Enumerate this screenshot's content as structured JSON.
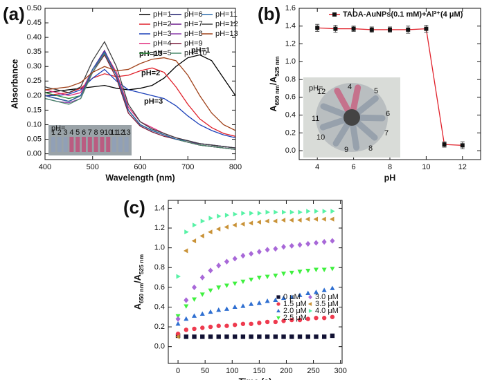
{
  "chart_data": [
    {
      "type": "line",
      "title": "(a)",
      "x_label": "Wavelength (nm)",
      "y_label": "Absorbance",
      "x": [
        400,
        425,
        450,
        475,
        500,
        525,
        550,
        575,
        600,
        625,
        650,
        675,
        700,
        725,
        750,
        775,
        800
      ],
      "xlim": [
        400,
        800
      ],
      "xticks": [
        400,
        500,
        600,
        700,
        800
      ],
      "ylim": [
        -0.02,
        0.5
      ],
      "yticks": [
        {
          "value": 0,
          "label": "0.00"
        },
        0.05,
        {
          "value": 0.1,
          "label": "0.10"
        },
        0.15,
        {
          "value": 0.2,
          "label": "0.20"
        },
        0.25,
        {
          "value": 0.3,
          "label": "0.30"
        },
        0.35,
        {
          "value": 0.4,
          "label": "0.40"
        },
        0.45,
        {
          "value": 0.5,
          "label": "0.50"
        }
      ],
      "legend_loc": "upper right",
      "legend_columns": 3,
      "annotations": [
        "pH=13",
        "pH=1",
        "pH=2",
        "pH=3"
      ],
      "inset_labels": [
        "pH=",
        "1",
        "2",
        "3",
        "4",
        "5",
        "6",
        "7",
        "8",
        "9",
        "10",
        "11",
        "12",
        "13"
      ],
      "series": [
        {
          "name": "pH=1",
          "color": "#000000",
          "values": [
            0.21,
            0.215,
            0.22,
            0.225,
            0.23,
            0.235,
            0.225,
            0.22,
            0.225,
            0.235,
            0.26,
            0.3,
            0.33,
            0.34,
            0.32,
            0.26,
            0.2
          ]
        },
        {
          "name": "pH=2",
          "color": "#e0202a",
          "values": [
            0.2,
            0.205,
            0.21,
            0.225,
            0.26,
            0.275,
            0.265,
            0.27,
            0.285,
            0.295,
            0.28,
            0.23,
            0.17,
            0.12,
            0.09,
            0.07,
            0.06
          ]
        },
        {
          "name": "pH=3",
          "color": "#1a3fb8",
          "values": [
            0.2,
            0.2,
            0.205,
            0.22,
            0.26,
            0.29,
            0.25,
            0.22,
            0.21,
            0.2,
            0.19,
            0.165,
            0.13,
            0.1,
            0.08,
            0.065,
            0.055
          ]
        },
        {
          "name": "pH=4",
          "color": "#e0287a",
          "values": [
            0.22,
            0.21,
            0.2,
            0.21,
            0.29,
            0.35,
            0.28,
            0.16,
            0.11,
            0.09,
            0.07,
            0.055,
            0.045,
            0.035,
            0.03,
            0.025,
            0.02
          ]
        },
        {
          "name": "pH=5",
          "color": "#2a8a3a",
          "values": [
            0.21,
            0.2,
            0.19,
            0.2,
            0.29,
            0.35,
            0.27,
            0.15,
            0.1,
            0.08,
            0.065,
            0.05,
            0.04,
            0.03,
            0.025,
            0.02,
            0.015
          ]
        },
        {
          "name": "pH=6",
          "color": "#1a1a6a",
          "values": [
            0.2,
            0.19,
            0.18,
            0.2,
            0.29,
            0.345,
            0.27,
            0.15,
            0.1,
            0.08,
            0.065,
            0.05,
            0.04,
            0.03,
            0.025,
            0.02,
            0.015
          ]
        },
        {
          "name": "pH=7",
          "color": "#6a1a8a",
          "values": [
            0.2,
            0.19,
            0.18,
            0.2,
            0.29,
            0.355,
            0.27,
            0.15,
            0.1,
            0.08,
            0.065,
            0.05,
            0.04,
            0.035,
            0.03,
            0.025,
            0.02
          ]
        },
        {
          "name": "pH=8",
          "color": "#8a3aaa",
          "values": [
            0.19,
            0.18,
            0.175,
            0.19,
            0.28,
            0.35,
            0.27,
            0.15,
            0.1,
            0.08,
            0.065,
            0.05,
            0.04,
            0.03,
            0.025,
            0.02,
            0.015
          ]
        },
        {
          "name": "pH=9",
          "color": "#7a1a3a",
          "values": [
            0.2,
            0.19,
            0.18,
            0.2,
            0.28,
            0.34,
            0.26,
            0.14,
            0.095,
            0.075,
            0.06,
            0.05,
            0.04,
            0.03,
            0.025,
            0.02,
            0.015
          ]
        },
        {
          "name": "pH=10",
          "color": "#4a8a6a",
          "values": [
            0.19,
            0.18,
            0.17,
            0.19,
            0.28,
            0.345,
            0.27,
            0.15,
            0.1,
            0.08,
            0.065,
            0.05,
            0.04,
            0.03,
            0.025,
            0.02,
            0.015
          ]
        },
        {
          "name": "pH=11",
          "color": "#2a6aaa",
          "values": [
            0.2,
            0.19,
            0.18,
            0.2,
            0.29,
            0.35,
            0.27,
            0.15,
            0.1,
            0.08,
            0.065,
            0.05,
            0.045,
            0.035,
            0.03,
            0.025,
            0.02
          ]
        },
        {
          "name": "pH=12",
          "color": "#404040",
          "values": [
            0.23,
            0.22,
            0.21,
            0.23,
            0.32,
            0.385,
            0.3,
            0.17,
            0.11,
            0.085,
            0.07,
            0.055,
            0.045,
            0.035,
            0.03,
            0.025,
            0.02
          ]
        },
        {
          "name": "pH=13",
          "color": "#a0421a",
          "values": [
            0.22,
            0.225,
            0.23,
            0.245,
            0.28,
            0.3,
            0.285,
            0.29,
            0.31,
            0.325,
            0.33,
            0.32,
            0.27,
            0.2,
            0.14,
            0.1,
            0.08
          ]
        }
      ]
    },
    {
      "type": "line",
      "title": "(b)",
      "x_label": "pH",
      "y_label_parts": [
        "A",
        "650 nm",
        "/A",
        "525 nm"
      ],
      "x": [
        4,
        5,
        6,
        7,
        8,
        9,
        10,
        11,
        12
      ],
      "xlim": [
        3,
        13
      ],
      "xticks": [
        4,
        6,
        8,
        10,
        12
      ],
      "ylim": [
        -0.1,
        1.6
      ],
      "yticks": [
        {
          "value": 0,
          "label": "0.0"
        },
        0.2,
        0.4,
        0.6,
        0.8,
        {
          "value": 1,
          "label": "1.0"
        },
        1.2,
        1.4,
        1.6
      ],
      "legend_loc": "upper right",
      "legend_columns": 1,
      "inset_labels": [
        "pH=",
        "12",
        "4",
        "5",
        "6",
        "7",
        "8",
        "9",
        "10",
        "11"
      ],
      "series": [
        {
          "name": "TADA-AuNPs(0.1 mM)+Al³⁺(4 μM)",
          "color": "#e0202a",
          "marker": "square",
          "marker_color": "#111111",
          "values": [
            1.38,
            1.37,
            1.37,
            1.36,
            1.36,
            1.36,
            1.37,
            0.07,
            0.06
          ],
          "errors": [
            0.04,
            0.04,
            0.03,
            0.03,
            0.03,
            0.04,
            0.04,
            0.03,
            0.04
          ]
        }
      ]
    },
    {
      "type": "scatter",
      "title": "(c)",
      "x_label": "Time (s)",
      "y_label_parts": [
        "A",
        "650 nm",
        "/A",
        "525 nm"
      ],
      "x": [
        0,
        15,
        30,
        45,
        60,
        75,
        90,
        105,
        120,
        135,
        150,
        165,
        180,
        195,
        210,
        225,
        240,
        255,
        270,
        285
      ],
      "xlim": [
        -18,
        303
      ],
      "xticks": [
        0,
        50,
        100,
        150,
        200,
        250,
        300
      ],
      "ylim": [
        -0.17,
        1.48
      ],
      "yticks": [
        {
          "value": 0,
          "label": "0.0"
        },
        0.2,
        0.4,
        0.6,
        0.8,
        {
          "value": 1,
          "label": "1.0"
        },
        1.2,
        1.4
      ],
      "legend_loc": "lower right",
      "legend_columns": 2,
      "series": [
        {
          "name": "0 μM",
          "color": "#111133",
          "marker": "square",
          "values": [
            0.11,
            0.1,
            0.1,
            0.1,
            0.1,
            0.1,
            0.1,
            0.1,
            0.1,
            0.1,
            0.1,
            0.1,
            0.1,
            0.1,
            0.1,
            0.1,
            0.1,
            0.1,
            0.1,
            0.11
          ]
        },
        {
          "name": "1.5 μM",
          "color": "#ee3a4e",
          "marker": "circle",
          "values": [
            0.13,
            0.17,
            0.18,
            0.19,
            0.2,
            0.21,
            0.21,
            0.22,
            0.23,
            0.23,
            0.24,
            0.25,
            0.25,
            0.26,
            0.27,
            0.27,
            0.28,
            0.29,
            0.29,
            0.3
          ]
        },
        {
          "name": "2.0 μM",
          "color": "#2f6fd1",
          "marker": "triangle-up",
          "values": [
            0.23,
            0.28,
            0.31,
            0.33,
            0.35,
            0.37,
            0.38,
            0.4,
            0.41,
            0.43,
            0.44,
            0.46,
            0.47,
            0.49,
            0.5,
            0.52,
            0.54,
            0.55,
            0.57,
            0.59
          ]
        },
        {
          "name": "2.5 μM",
          "color": "#3ff03f",
          "marker": "triangle-down",
          "values": [
            0.31,
            0.41,
            0.48,
            0.53,
            0.57,
            0.6,
            0.62,
            0.64,
            0.66,
            0.68,
            0.7,
            0.71,
            0.72,
            0.74,
            0.75,
            0.76,
            0.77,
            0.78,
            0.78,
            0.79
          ]
        },
        {
          "name": "3.0 μM",
          "color": "#a868d8",
          "marker": "diamond",
          "values": [
            0.28,
            0.47,
            0.6,
            0.7,
            0.77,
            0.82,
            0.86,
            0.89,
            0.92,
            0.94,
            0.96,
            0.98,
            0.99,
            1.01,
            1.02,
            1.03,
            1.04,
            1.05,
            1.06,
            1.07
          ]
        },
        {
          "name": "3.5 μM",
          "color": "#c99237",
          "marker": "triangle-left",
          "values": [
            0.1,
            0.97,
            1.07,
            1.12,
            1.16,
            1.19,
            1.21,
            1.23,
            1.24,
            1.25,
            1.26,
            1.27,
            1.27,
            1.28,
            1.28,
            1.28,
            1.29,
            1.29,
            1.29,
            1.29
          ]
        },
        {
          "name": "4.0 μM",
          "color": "#57f2a6",
          "marker": "triangle-right",
          "values": [
            0.71,
            1.16,
            1.23,
            1.27,
            1.3,
            1.32,
            1.33,
            1.34,
            1.35,
            1.35,
            1.35,
            1.36,
            1.36,
            1.36,
            1.36,
            1.36,
            1.37,
            1.37,
            1.37,
            1.37
          ]
        }
      ]
    }
  ]
}
